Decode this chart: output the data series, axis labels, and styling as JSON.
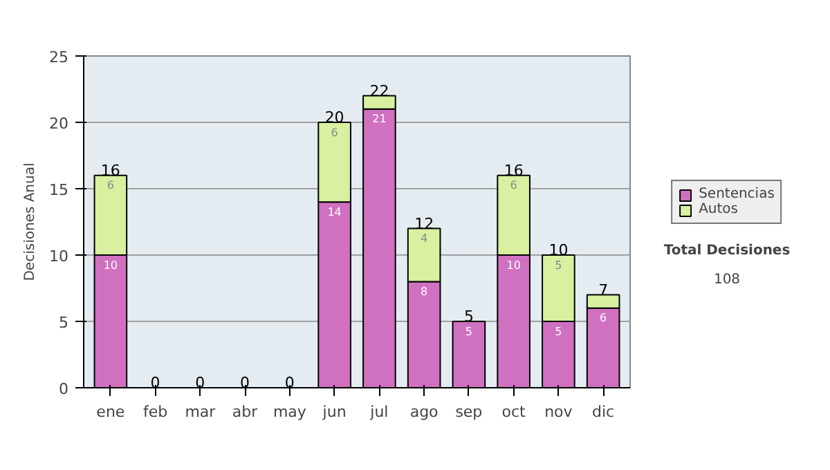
{
  "chart_data": {
    "type": "bar",
    "stacked": true,
    "ylabel": "Decisiones Anual",
    "categories": [
      "ene",
      "feb",
      "mar",
      "abr",
      "may",
      "jun",
      "jul",
      "ago",
      "sep",
      "oct",
      "nov",
      "dic"
    ],
    "series": [
      {
        "name": "Sentencias",
        "color": "#d070c0",
        "values": [
          10,
          0,
          0,
          0,
          0,
          14,
          21,
          8,
          5,
          10,
          5,
          6
        ],
        "value_labels": [
          "10",
          null,
          null,
          null,
          null,
          "14",
          "21",
          "8",
          "5",
          "10",
          "5",
          "6"
        ]
      },
      {
        "name": "Autos",
        "color": "#d8f0a0",
        "values": [
          6,
          0,
          0,
          0,
          0,
          6,
          1,
          4,
          0,
          6,
          5,
          1
        ],
        "value_labels": [
          "6",
          null,
          null,
          null,
          null,
          "6",
          null,
          "4",
          null,
          "6",
          "5",
          null
        ]
      }
    ],
    "totals": [
      "16",
      "0",
      "0",
      "0",
      "0",
      "20",
      "22",
      "12",
      "5",
      "16",
      "10",
      "7"
    ],
    "ylim": [
      0,
      25
    ],
    "yticks": [
      0,
      5,
      10,
      15,
      20,
      25
    ],
    "grid": "y",
    "legend": "right",
    "annotations": [
      "Total Decisiones",
      "108"
    ]
  }
}
